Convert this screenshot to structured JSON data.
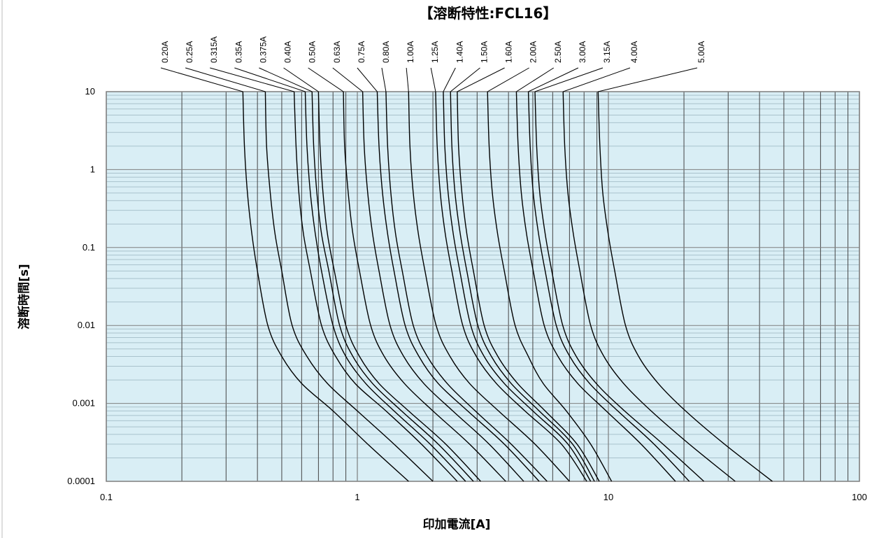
{
  "chart_data": {
    "type": "line",
    "title": "【溶断特性:FCL16】",
    "xlabel": "印加電流[A]",
    "ylabel": "溶断時間[s]",
    "x_scale": "log",
    "y_scale": "log",
    "xlim": [
      0.1,
      100
    ],
    "ylim": [
      0.0001,
      10
    ],
    "x_ticks": [
      0.1,
      1,
      10,
      100
    ],
    "x_tick_labels": [
      "0.1",
      "1",
      "10",
      "100"
    ],
    "y_ticks": [
      0.0001,
      0.001,
      0.01,
      0.1,
      1,
      10
    ],
    "y_tick_labels": [
      "0.0001",
      "0.001",
      "0.01",
      "0.1",
      "1",
      "10"
    ],
    "grid": true,
    "plot_background": "#d9eef5",
    "grid_color": "#444444",
    "minor_grid_color": "#a9c2cc",
    "line_color": "#000000",
    "legend": "callout labels along the top",
    "series": [
      {
        "name": "0.20A",
        "points": [
          [
            0.35,
            10
          ],
          [
            0.355,
            2
          ],
          [
            0.365,
            0.5
          ],
          [
            0.38,
            0.15
          ],
          [
            0.4,
            0.05
          ],
          [
            0.44,
            0.01
          ],
          [
            0.5,
            0.004
          ],
          [
            0.6,
            0.0018
          ],
          [
            0.8,
            0.0008
          ],
          [
            1.1,
            0.0003
          ],
          [
            1.6,
            0.0001
          ]
        ]
      },
      {
        "name": "0.25A",
        "points": [
          [
            0.43,
            10
          ],
          [
            0.435,
            2
          ],
          [
            0.45,
            0.5
          ],
          [
            0.47,
            0.15
          ],
          [
            0.5,
            0.05
          ],
          [
            0.55,
            0.01
          ],
          [
            0.63,
            0.004
          ],
          [
            0.76,
            0.0018
          ],
          [
            1.0,
            0.0008
          ],
          [
            1.4,
            0.0003
          ],
          [
            2.0,
            0.0001
          ]
        ]
      },
      {
        "name": "0.315A",
        "points": [
          [
            0.56,
            10
          ],
          [
            0.57,
            2
          ],
          [
            0.585,
            0.5
          ],
          [
            0.61,
            0.15
          ],
          [
            0.65,
            0.05
          ],
          [
            0.72,
            0.01
          ],
          [
            0.82,
            0.004
          ],
          [
            0.98,
            0.0018
          ],
          [
            1.3,
            0.0008
          ],
          [
            1.8,
            0.0003
          ],
          [
            2.5,
            0.0001
          ]
        ]
      },
      {
        "name": "0.35A",
        "points": [
          [
            0.62,
            10
          ],
          [
            0.63,
            2
          ],
          [
            0.65,
            0.5
          ],
          [
            0.68,
            0.15
          ],
          [
            0.72,
            0.05
          ],
          [
            0.8,
            0.01
          ],
          [
            0.9,
            0.004
          ],
          [
            1.08,
            0.0018
          ],
          [
            1.4,
            0.0008
          ],
          [
            1.95,
            0.0003
          ],
          [
            2.7,
            0.0001
          ]
        ]
      },
      {
        "name": "0.375A",
        "points": [
          [
            0.66,
            10
          ],
          [
            0.67,
            2
          ],
          [
            0.69,
            0.5
          ],
          [
            0.72,
            0.15
          ],
          [
            0.77,
            0.05
          ],
          [
            0.85,
            0.01
          ],
          [
            0.96,
            0.004
          ],
          [
            1.15,
            0.0018
          ],
          [
            1.5,
            0.0008
          ],
          [
            2.1,
            0.0003
          ],
          [
            2.9,
            0.0001
          ]
        ]
      },
      {
        "name": "0.40A",
        "points": [
          [
            0.7,
            10
          ],
          [
            0.71,
            2
          ],
          [
            0.73,
            0.5
          ],
          [
            0.76,
            0.15
          ],
          [
            0.81,
            0.05
          ],
          [
            0.9,
            0.01
          ],
          [
            1.02,
            0.004
          ],
          [
            1.22,
            0.0018
          ],
          [
            1.6,
            0.0008
          ],
          [
            2.25,
            0.0003
          ],
          [
            3.1,
            0.0001
          ]
        ]
      },
      {
        "name": "0.50A",
        "points": [
          [
            0.88,
            10
          ],
          [
            0.89,
            2
          ],
          [
            0.92,
            0.5
          ],
          [
            0.96,
            0.15
          ],
          [
            1.02,
            0.05
          ],
          [
            1.13,
            0.01
          ],
          [
            1.28,
            0.004
          ],
          [
            1.54,
            0.0018
          ],
          [
            2.0,
            0.0008
          ],
          [
            2.8,
            0.0003
          ],
          [
            3.9,
            0.0001
          ]
        ]
      },
      {
        "name": "0.63A",
        "points": [
          [
            1.05,
            10
          ],
          [
            1.065,
            2
          ],
          [
            1.1,
            0.5
          ],
          [
            1.15,
            0.15
          ],
          [
            1.22,
            0.05
          ],
          [
            1.35,
            0.01
          ],
          [
            1.53,
            0.004
          ],
          [
            1.84,
            0.0018
          ],
          [
            2.4,
            0.0008
          ],
          [
            3.35,
            0.0003
          ],
          [
            4.6,
            0.0001
          ]
        ]
      },
      {
        "name": "0.75A",
        "points": [
          [
            1.2,
            10
          ],
          [
            1.22,
            2
          ],
          [
            1.26,
            0.5
          ],
          [
            1.32,
            0.15
          ],
          [
            1.4,
            0.05
          ],
          [
            1.55,
            0.01
          ],
          [
            1.76,
            0.004
          ],
          [
            2.1,
            0.0018
          ],
          [
            2.75,
            0.0008
          ],
          [
            3.85,
            0.0003
          ],
          [
            5.3,
            0.0001
          ]
        ]
      },
      {
        "name": "0.80A",
        "points": [
          [
            1.3,
            10
          ],
          [
            1.32,
            2
          ],
          [
            1.36,
            0.5
          ],
          [
            1.42,
            0.15
          ],
          [
            1.51,
            0.05
          ],
          [
            1.67,
            0.01
          ],
          [
            1.9,
            0.004
          ],
          [
            2.28,
            0.0018
          ],
          [
            2.95,
            0.0008
          ],
          [
            4.1,
            0.0003
          ],
          [
            5.7,
            0.0001
          ]
        ]
      },
      {
        "name": "1.00A",
        "points": [
          [
            1.6,
            10
          ],
          [
            1.62,
            2
          ],
          [
            1.67,
            0.5
          ],
          [
            1.75,
            0.15
          ],
          [
            1.86,
            0.05
          ],
          [
            2.06,
            0.01
          ],
          [
            2.34,
            0.004
          ],
          [
            2.8,
            0.0018
          ],
          [
            3.65,
            0.0008
          ],
          [
            5.1,
            0.0003
          ],
          [
            7.0,
            0.0001
          ]
        ]
      },
      {
        "name": "1.25A",
        "points": [
          [
            2.05,
            10
          ],
          [
            2.08,
            2
          ],
          [
            2.14,
            0.5
          ],
          [
            2.24,
            0.15
          ],
          [
            2.38,
            0.05
          ],
          [
            2.63,
            0.01
          ],
          [
            2.98,
            0.004
          ],
          [
            3.58,
            0.0018
          ],
          [
            4.65,
            0.0008
          ],
          [
            6.5,
            0.0003
          ],
          [
            8.2,
            0.0001
          ]
        ]
      },
      {
        "name": "1.40A",
        "points": [
          [
            2.2,
            10
          ],
          [
            2.23,
            2
          ],
          [
            2.3,
            0.5
          ],
          [
            2.41,
            0.15
          ],
          [
            2.56,
            0.05
          ],
          [
            2.83,
            0.01
          ],
          [
            3.2,
            0.004
          ],
          [
            3.85,
            0.0018
          ],
          [
            5.0,
            0.0008
          ],
          [
            6.9,
            0.0003
          ],
          [
            8.5,
            0.0001
          ]
        ]
      },
      {
        "name": "1.50A",
        "points": [
          [
            2.35,
            10
          ],
          [
            2.38,
            2
          ],
          [
            2.45,
            0.5
          ],
          [
            2.57,
            0.15
          ],
          [
            2.73,
            0.05
          ],
          [
            3.02,
            0.01
          ],
          [
            3.42,
            0.004
          ],
          [
            4.1,
            0.0018
          ],
          [
            5.3,
            0.0008
          ],
          [
            7.2,
            0.0003
          ],
          [
            8.8,
            0.0001
          ]
        ]
      },
      {
        "name": "1.60A",
        "points": [
          [
            2.5,
            10
          ],
          [
            2.53,
            2
          ],
          [
            2.61,
            0.5
          ],
          [
            2.73,
            0.15
          ],
          [
            2.9,
            0.05
          ],
          [
            3.2,
            0.01
          ],
          [
            3.63,
            0.004
          ],
          [
            4.35,
            0.0018
          ],
          [
            5.6,
            0.0008
          ],
          [
            7.5,
            0.0003
          ],
          [
            9.2,
            0.0001
          ]
        ]
      },
      {
        "name": "2.00A",
        "points": [
          [
            3.3,
            10
          ],
          [
            3.35,
            2
          ],
          [
            3.45,
            0.5
          ],
          [
            3.62,
            0.15
          ],
          [
            3.85,
            0.05
          ],
          [
            4.25,
            0.01
          ],
          [
            4.8,
            0.004
          ],
          [
            5.5,
            0.0018
          ],
          [
            6.8,
            0.0008
          ],
          [
            8.5,
            0.0003
          ],
          [
            10.3,
            0.0001
          ]
        ]
      },
      {
        "name": "2.50A",
        "points": [
          [
            4.3,
            10
          ],
          [
            4.37,
            2
          ],
          [
            4.5,
            0.5
          ],
          [
            4.72,
            0.15
          ],
          [
            5.02,
            0.05
          ],
          [
            5.55,
            0.01
          ],
          [
            6.3,
            0.004
          ],
          [
            7.55,
            0.0018
          ],
          [
            9.8,
            0.0008
          ],
          [
            13.5,
            0.0003
          ],
          [
            18.5,
            0.0001
          ]
        ]
      },
      {
        "name": "3.00A",
        "points": [
          [
            4.8,
            10
          ],
          [
            4.88,
            2
          ],
          [
            5.02,
            0.5
          ],
          [
            5.27,
            0.15
          ],
          [
            5.6,
            0.05
          ],
          [
            6.2,
            0.01
          ],
          [
            7.02,
            0.004
          ],
          [
            8.42,
            0.0018
          ],
          [
            10.9,
            0.0008
          ],
          [
            15.2,
            0.0003
          ],
          [
            21.0,
            0.0001
          ]
        ]
      },
      {
        "name": "3.15A",
        "points": [
          [
            5.1,
            10
          ],
          [
            5.18,
            2
          ],
          [
            5.33,
            0.5
          ],
          [
            5.6,
            0.15
          ],
          [
            5.95,
            0.05
          ],
          [
            6.58,
            0.01
          ],
          [
            7.45,
            0.004
          ],
          [
            8.95,
            0.0018
          ],
          [
            11.6,
            0.0008
          ],
          [
            16.5,
            0.0003
          ],
          [
            24.0,
            0.0001
          ]
        ]
      },
      {
        "name": "4.00A",
        "points": [
          [
            6.6,
            10
          ],
          [
            6.7,
            2
          ],
          [
            6.9,
            0.5
          ],
          [
            7.25,
            0.15
          ],
          [
            7.7,
            0.05
          ],
          [
            8.5,
            0.01
          ],
          [
            9.6,
            0.004
          ],
          [
            11.5,
            0.0018
          ],
          [
            14.8,
            0.0008
          ],
          [
            21.0,
            0.0003
          ],
          [
            32.0,
            0.0001
          ]
        ]
      },
      {
        "name": "5.00A",
        "points": [
          [
            9.1,
            10
          ],
          [
            9.25,
            2
          ],
          [
            9.5,
            0.5
          ],
          [
            9.98,
            0.15
          ],
          [
            10.6,
            0.05
          ],
          [
            11.7,
            0.01
          ],
          [
            13.2,
            0.004
          ],
          [
            15.8,
            0.0018
          ],
          [
            20.3,
            0.0008
          ],
          [
            29.0,
            0.0003
          ],
          [
            45.0,
            0.0001
          ]
        ]
      }
    ]
  }
}
